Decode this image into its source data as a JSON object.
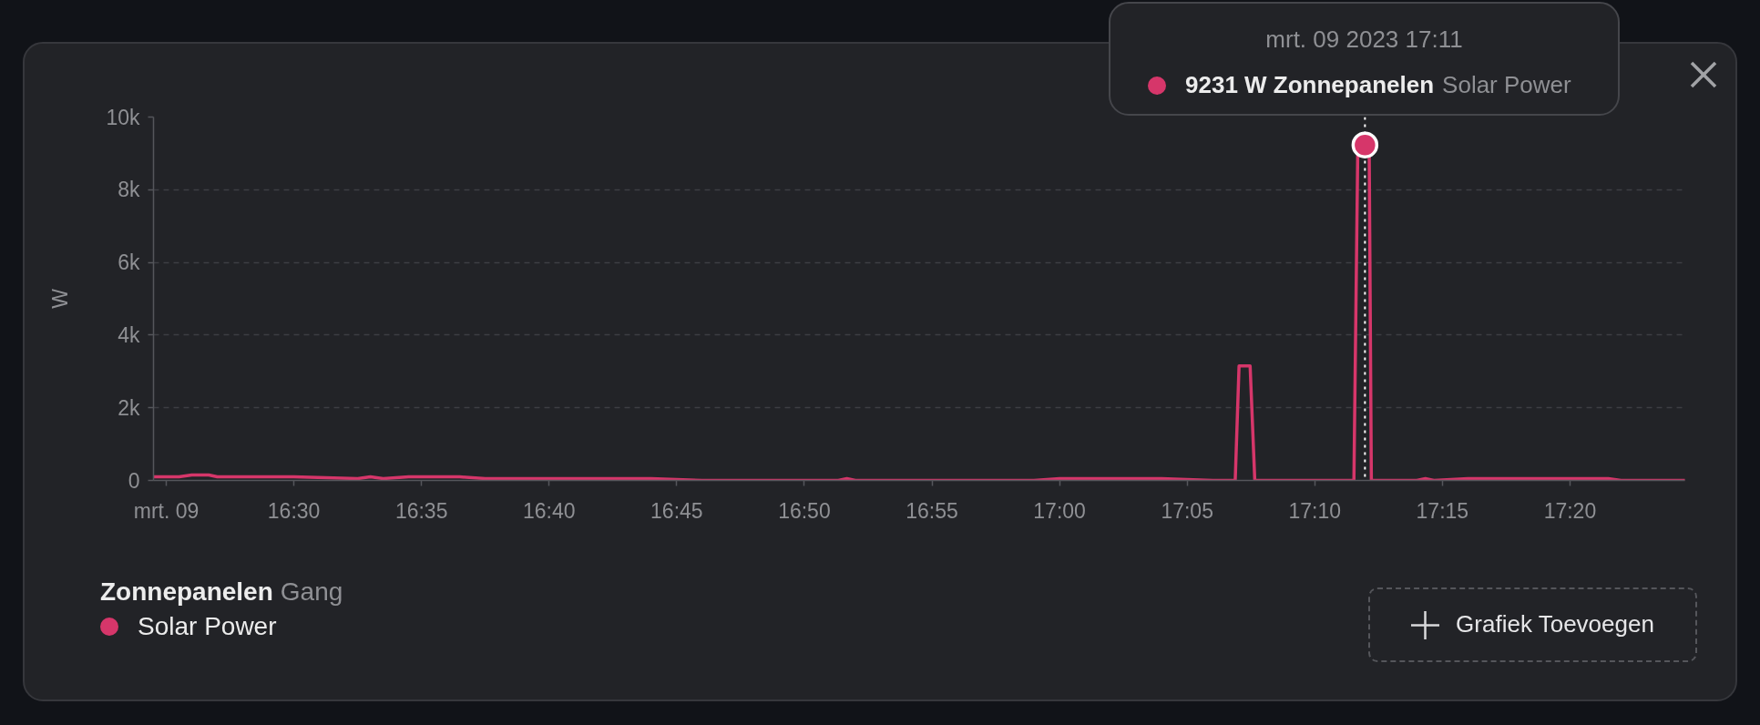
{
  "chart_data": {
    "type": "line",
    "ylabel": "W",
    "legend_title": "Zonnepanelen Gang",
    "legend": "bottom left",
    "grid": "y",
    "line_style": "solid",
    "x": [
      "2023-03-09T16:24:30",
      "2023-03-09T16:25:30",
      "2023-03-09T16:26:00",
      "2023-03-09T16:26:40",
      "2023-03-09T16:27:00",
      "2023-03-09T16:30:00",
      "2023-03-09T16:32:30",
      "2023-03-09T16:33:00",
      "2023-03-09T16:33:30",
      "2023-03-09T16:34:30",
      "2023-03-09T16:36:30",
      "2023-03-09T16:37:30",
      "2023-03-09T16:44:00",
      "2023-03-09T16:46:00",
      "2023-03-09T16:51:20",
      "2023-03-09T16:51:40",
      "2023-03-09T16:52:00",
      "2023-03-09T16:59:00",
      "2023-03-09T17:00:00",
      "2023-03-09T17:04:00",
      "2023-03-09T17:06:00",
      "2023-03-09T17:06:53",
      "2023-03-09T17:07:02",
      "2023-03-09T17:07:28",
      "2023-03-09T17:07:39",
      "2023-03-09T17:11:32",
      "2023-03-09T17:11:41",
      "2023-03-09T17:11:58",
      "2023-03-09T17:12:08",
      "2023-03-09T17:12:13",
      "2023-03-09T17:14:00",
      "2023-03-09T17:14:20",
      "2023-03-09T17:14:40",
      "2023-03-09T17:16:00",
      "2023-03-09T17:21:00",
      "2023-03-09T17:21:30",
      "2023-03-09T17:22:00",
      "2023-03-09T17:24:30"
    ],
    "series": [
      {
        "name": "Solar Power",
        "color": "#d6366a",
        "values": [
          100,
          100,
          150,
          150,
          100,
          100,
          50,
          100,
          50,
          100,
          100,
          50,
          50,
          0,
          0,
          50,
          0,
          0,
          50,
          50,
          0,
          0,
          3150,
          3150,
          0,
          0,
          9000,
          9231,
          9000,
          0,
          0,
          50,
          0,
          50,
          50,
          50,
          0,
          0
        ]
      }
    ],
    "xlim": [
      "2023-03-09T16:24:30",
      "2023-03-09T17:24:30"
    ],
    "xticks": [
      {
        "value": "2023-03-09T16:25",
        "label": "mrt. 09"
      },
      {
        "value": "2023-03-09T16:30",
        "label": "16:30"
      },
      {
        "value": "2023-03-09T16:35",
        "label": "16:35"
      },
      {
        "value": "2023-03-09T16:40",
        "label": "16:40"
      },
      {
        "value": "2023-03-09T16:45",
        "label": "16:45"
      },
      {
        "value": "2023-03-09T16:50",
        "label": "16:50"
      },
      {
        "value": "2023-03-09T16:55",
        "label": "16:55"
      },
      {
        "value": "2023-03-09T17:00",
        "label": "17:00"
      },
      {
        "value": "2023-03-09T17:05",
        "label": "17:05"
      },
      {
        "value": "2023-03-09T17:10",
        "label": "17:10"
      },
      {
        "value": "2023-03-09T17:15",
        "label": "17:15"
      },
      {
        "value": "2023-03-09T17:20",
        "label": "17:20"
      }
    ],
    "ylim": [
      0,
      10000
    ],
    "yticks": [
      0,
      {
        "value": 2000,
        "label": "2k"
      },
      {
        "value": 4000,
        "label": "4k"
      },
      {
        "value": 6000,
        "label": "6k"
      },
      {
        "value": 8000,
        "label": "8k"
      },
      {
        "value": 10000,
        "label": "10k"
      }
    ],
    "ref_lines": [
      {
        "axis": "x",
        "value": "2023-03-09T17:11:58",
        "color": "#ffffff",
        "line_style": "dotted"
      }
    ],
    "annotations": [
      {
        "text": "mrt. 09 2023 17:11\n9231 W Zonnepanelen Solar Power",
        "x": "2023-03-09T17:11:58",
        "y": 9231
      },
      "Grafiek Toevoegen"
    ]
  }
}
